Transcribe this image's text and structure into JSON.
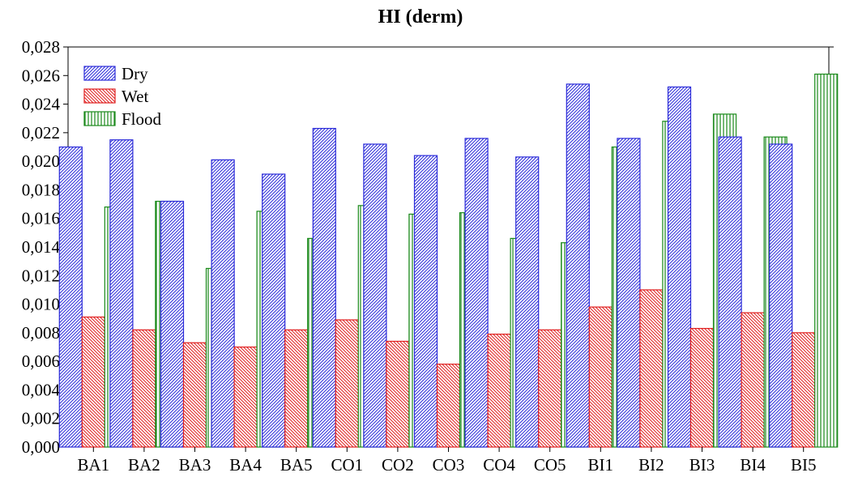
{
  "chart_data": {
    "type": "bar",
    "title": "HI (derm)",
    "xlabel": "",
    "ylabel": "",
    "ylim": [
      0,
      0.028
    ],
    "yticks": [
      "0,000",
      "0,002",
      "0,004",
      "0,006",
      "0,008",
      "0,010",
      "0,012",
      "0,014",
      "0,016",
      "0,018",
      "0,020",
      "0,022",
      "0,024",
      "0,026",
      "0,028"
    ],
    "categories": [
      "BA1",
      "BA2",
      "BA3",
      "BA4",
      "BA5",
      "CO1",
      "CO2",
      "CO3",
      "CO4",
      "CO5",
      "BI1",
      "BI2",
      "BI3",
      "BI4",
      "BI5"
    ],
    "legend_position": "top-left",
    "grid": false,
    "series": [
      {
        "name": "Dry",
        "color": "#2b2bd9",
        "hatch": "diagonal",
        "values": [
          0.021,
          0.0215,
          0.0172,
          0.0201,
          0.0191,
          0.0223,
          0.0212,
          0.0204,
          0.0216,
          0.0203,
          0.0254,
          0.0216,
          0.0252,
          0.0217,
          0.0212
        ]
      },
      {
        "name": "Wet",
        "color": "#e02020",
        "hatch": "diagonal",
        "values": [
          0.0091,
          0.0082,
          0.0073,
          0.007,
          0.0082,
          0.0089,
          0.0074,
          0.0058,
          0.0079,
          0.0082,
          0.0098,
          0.011,
          0.0083,
          0.0094,
          0.008
        ]
      },
      {
        "name": "Flood",
        "color": "#1a8a1a",
        "hatch": "vertical",
        "values": [
          0.0168,
          0.0172,
          0.0125,
          0.0165,
          0.0146,
          0.0169,
          0.0163,
          0.0164,
          0.0146,
          0.0143,
          0.021,
          0.0228,
          0.0233,
          0.0217,
          0.0261
        ]
      }
    ]
  }
}
